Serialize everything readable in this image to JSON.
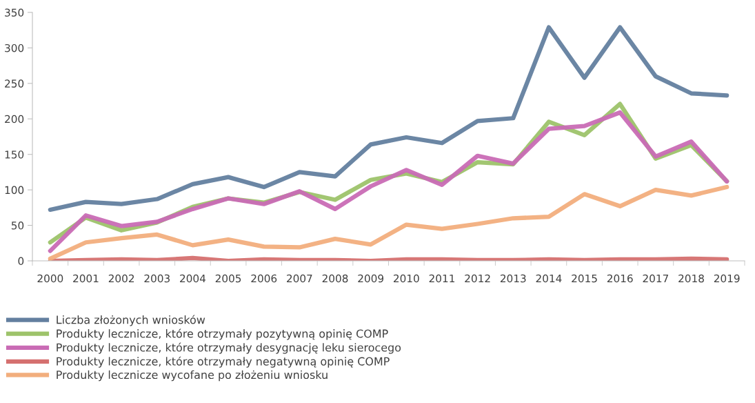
{
  "chart_data": {
    "type": "line",
    "categories": [
      "2000",
      "2001",
      "2002",
      "2003",
      "2004",
      "2005",
      "2006",
      "2007",
      "2008",
      "2009",
      "2010",
      "2011",
      "2012",
      "2013",
      "2014",
      "2015",
      "2016",
      "2017",
      "2018",
      "2019"
    ],
    "series": [
      {
        "name": "Liczba złożonych wniosków",
        "color": "#637f9f",
        "values": [
          72,
          83,
          80,
          87,
          108,
          118,
          104,
          125,
          119,
          164,
          174,
          166,
          197,
          201,
          329,
          258,
          329,
          260,
          236,
          233
        ]
      },
      {
        "name": "Produkty lecznicze, które otrzymały pozytywną opinię COMP",
        "color": "#9dc36a",
        "values": [
          26,
          61,
          43,
          54,
          76,
          88,
          82,
          97,
          86,
          114,
          123,
          111,
          139,
          136,
          196,
          177,
          221,
          144,
          163,
          112
        ]
      },
      {
        "name": "Produkty lecznicze, które otrzymały desygnację leku sierocego",
        "color": "#c96bb5",
        "values": [
          14,
          64,
          49,
          55,
          73,
          88,
          80,
          98,
          73,
          105,
          128,
          107,
          148,
          137,
          186,
          190,
          209,
          147,
          168,
          112
        ]
      },
      {
        "name": "Produkty lecznicze, które otrzymały negatywną opinię COMP",
        "color": "#d5706f",
        "values": [
          0,
          1,
          2,
          1,
          4,
          0,
          2,
          1,
          1,
          0,
          2,
          2,
          1,
          1,
          2,
          1,
          2,
          2,
          3,
          2
        ]
      },
      {
        "name": "Produkty lecznicze wycofane po złożeniu wniosku",
        "color": "#f2ae7d",
        "values": [
          3,
          26,
          32,
          37,
          22,
          30,
          20,
          19,
          31,
          23,
          51,
          45,
          52,
          60,
          62,
          94,
          77,
          100,
          92,
          104
        ]
      }
    ],
    "ylim": [
      0,
      350
    ],
    "yticks": [
      0,
      50,
      100,
      150,
      200,
      250,
      300,
      350
    ],
    "grid": false,
    "legend": "bottom",
    "marker": "none",
    "line_style": "solid"
  }
}
